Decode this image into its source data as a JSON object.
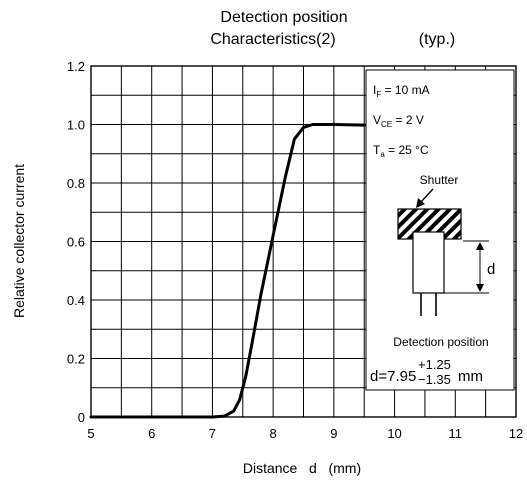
{
  "chart_data": {
    "type": "line",
    "title_line1": "Detection position",
    "title_line2": "Characteristics(2)",
    "title_suffix": "(typ.)",
    "xlabel": "Distance   d   (mm)",
    "ylabel": "Relative collector current",
    "xlim": [
      5,
      12
    ],
    "ylim": [
      0,
      1.2
    ],
    "x_ticks": [
      "5",
      "6",
      "7",
      "8",
      "9",
      "10",
      "11",
      "12"
    ],
    "y_ticks": [
      "0",
      "0.2",
      "0.4",
      "0.6",
      "0.8",
      "1.0",
      "1.2"
    ],
    "grid": true,
    "series": [
      {
        "x": [
          5.0,
          7.0,
          7.2,
          7.35,
          7.45,
          7.55,
          7.65,
          7.8,
          8.0,
          8.2,
          8.35,
          8.5,
          8.65,
          9.0,
          9.5
        ],
        "y": [
          0.0,
          0.0,
          0.003,
          0.02,
          0.06,
          0.14,
          0.25,
          0.42,
          0.62,
          0.82,
          0.95,
          0.99,
          1.0,
          1.0,
          0.998
        ]
      }
    ],
    "conditions": {
      "if_main": "I",
      "if_sub": "F",
      "if_value": " = 10 mA",
      "vce_main": "V",
      "vce_sub": "CE",
      "vce_value": " = 2 V",
      "ta_main": "T",
      "ta_sub": "a",
      "ta_value": " = 25 °C"
    },
    "inset": {
      "shutter_label": "Shutter",
      "d_label": "d",
      "caption": "Detection position",
      "formula_prefix": "d=7.95",
      "tol_plus": "+1.25",
      "tol_minus": "−1.35",
      "formula_unit": "mm"
    }
  }
}
